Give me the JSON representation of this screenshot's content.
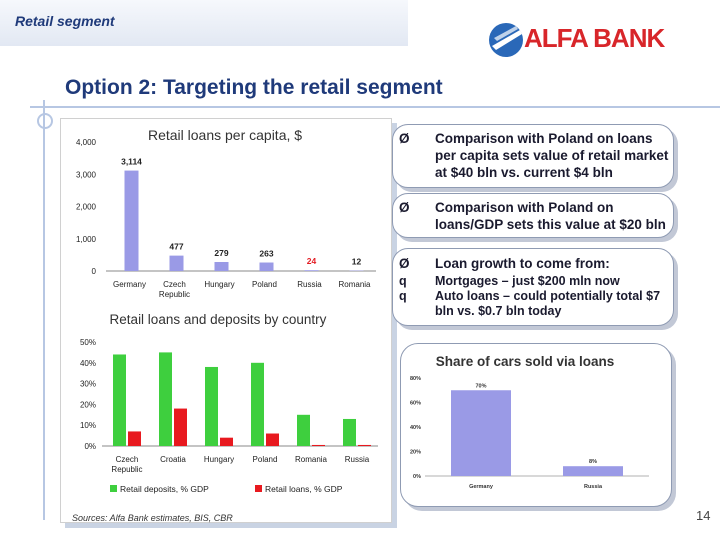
{
  "header": {
    "title": "Retail segment"
  },
  "logo": {
    "text": "ALFA BANK"
  },
  "slide": {
    "title": "Option 2: Targeting the retail segment",
    "page": "14",
    "sources": "Sources: Alfa Bank estimates, BIS, CBR"
  },
  "bullets": {
    "b1": "Comparison with Poland on loans per capita sets value of retail market at $40 bln vs. current $4 bln",
    "b2": "Comparison with Poland on loans/GDP sets this value at $20 bln",
    "b3": "Loan growth to come from:",
    "b3a": "Mortgages – just $200 mln now",
    "b3b": "Auto loans – could potentially total $7 bln vs. $0.7 bln today",
    "arrow_marker": "Ø",
    "square_marker": "q"
  },
  "colors": {
    "navy": "#1f3a7a",
    "brand_red": "#d8262a",
    "bar_blue": "#9a9ae6",
    "deposit_green": "#3ecf3e",
    "loan_red": "#e8191f"
  },
  "chart_data": [
    {
      "type": "bar",
      "title": "Retail loans per capita, $",
      "categories": [
        "Germany",
        "Czech Republic",
        "Hungary",
        "Poland",
        "Russia",
        "Romania"
      ],
      "category_lines": [
        [
          "Germany"
        ],
        [
          "Czech",
          "Republic"
        ],
        [
          "Hungary"
        ],
        [
          "Poland"
        ],
        [
          "Russia"
        ],
        [
          "Romania"
        ]
      ],
      "values": [
        3114,
        477,
        279,
        263,
        24,
        12
      ],
      "data_labels": [
        "3,114",
        "477",
        "279",
        "263",
        "24",
        "12"
      ],
      "highlight_category": "Russia",
      "yticks": [
        "4,000",
        "3,000",
        "2,000",
        "1,000",
        "0"
      ],
      "ylim": [
        0,
        4000
      ],
      "grid": false
    },
    {
      "type": "bar",
      "title": "Retail loans and deposits by country",
      "categories": [
        "Czech Republic",
        "Croatia",
        "Hungary",
        "Poland",
        "Romania",
        "Russia"
      ],
      "category_lines": [
        [
          "Czech",
          "Republic"
        ],
        [
          "Croatia"
        ],
        [
          "Hungary"
        ],
        [
          "Poland"
        ],
        [
          "Romania"
        ],
        [
          "Russia"
        ]
      ],
      "series": [
        {
          "name": "Retail deposits, % GDP",
          "values": [
            44,
            45,
            38,
            40,
            15,
            13
          ]
        },
        {
          "name": "Retail loans, % GDP",
          "values": [
            7,
            18,
            4,
            6,
            0.5,
            0.5
          ]
        }
      ],
      "yticks": [
        "50%",
        "40%",
        "30%",
        "20%",
        "10%",
        "0%"
      ],
      "ylim": [
        0,
        50
      ],
      "legend": "bottom",
      "grid": false
    },
    {
      "type": "bar",
      "title": "Share of cars sold via loans",
      "categories": [
        "Germany",
        "Russia"
      ],
      "values": [
        70,
        8
      ],
      "data_labels": [
        "70%",
        "8%"
      ],
      "yticks": [
        "80%",
        "60%",
        "40%",
        "20%",
        "0%"
      ],
      "ylim": [
        0,
        80
      ],
      "grid": false
    }
  ]
}
